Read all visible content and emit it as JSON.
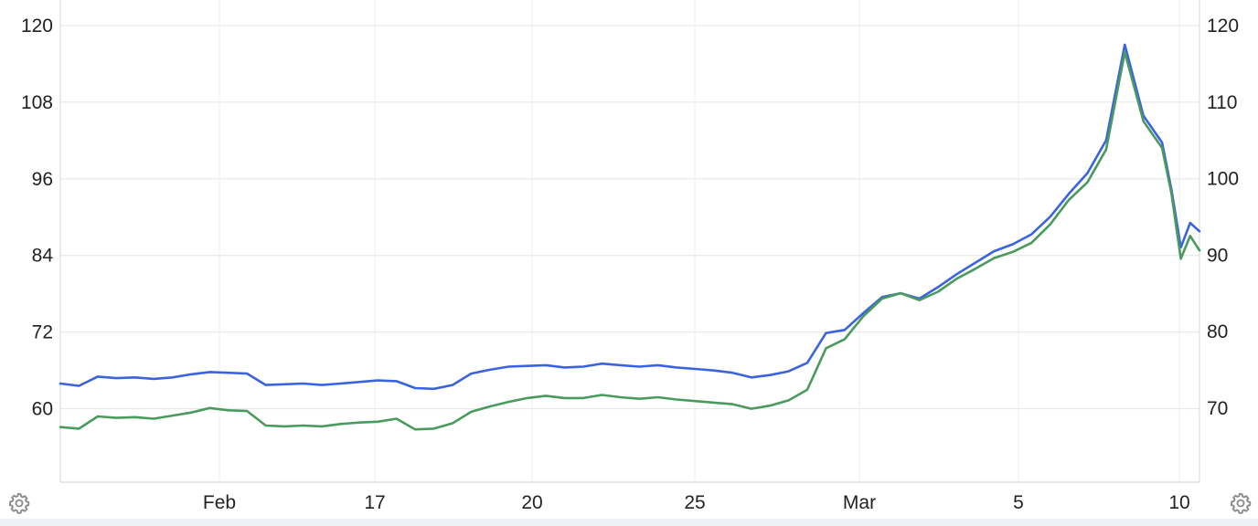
{
  "chart_data": {
    "type": "line",
    "x_ticks": [
      "Feb",
      "17",
      "20",
      "25",
      "Mar",
      "5",
      "10"
    ],
    "y_left": {
      "ticks": [
        60,
        72,
        84,
        96,
        108,
        120
      ],
      "range": [
        48.5,
        120
      ]
    },
    "y_right": {
      "ticks": [
        70,
        80,
        90,
        100,
        110,
        120
      ],
      "range": [
        60.3,
        120
      ]
    },
    "grid": true,
    "series": [
      {
        "color": "#3b63e0",
        "axis": "right",
        "x": [
          0,
          2,
          4,
          6,
          8,
          10,
          12,
          14,
          16,
          18,
          20,
          22,
          24,
          26,
          28,
          30,
          32,
          34,
          36,
          38,
          40,
          42,
          44,
          46,
          48,
          50,
          52,
          54,
          56,
          58,
          60,
          62,
          64,
          66,
          68,
          70,
          72,
          74,
          76,
          78,
          80,
          82,
          84,
          86,
          88,
          90,
          92,
          94,
          96,
          98,
          100
        ],
        "values": [
          73.2,
          72.9,
          74.1,
          73.9,
          74.0,
          73.8,
          74.0,
          74.4,
          74.7,
          74.6,
          74.5,
          73.0,
          73.1,
          73.2,
          73.0,
          73.2,
          73.4,
          73.6,
          73.5,
          72.6,
          72.5,
          73.0,
          74.5,
          75.0,
          75.4,
          75.5,
          75.6,
          75.3,
          75.4,
          75.8,
          75.6,
          75.4,
          75.6,
          75.3,
          75.1,
          74.9,
          74.6,
          74.0,
          74.3,
          74.8,
          75.9,
          79.8,
          80.2,
          82.4,
          84.5,
          85.0,
          84.3,
          85.8,
          87.5,
          89.0,
          90.5
        ]
      },
      {
        "color": "#3b63e0",
        "axis": "right",
        "x": [
          100,
          102,
          104,
          106,
          108,
          110,
          112,
          114,
          116,
          118,
          119,
          120,
          121,
          122
        ],
        "values": [
          90.5,
          91.4,
          92.7,
          95.0,
          98.0,
          100.7,
          105.0,
          117.5,
          108.2,
          104.7,
          98.5,
          91.0,
          94.2,
          93.1
        ]
      },
      {
        "color": "#4a9a5e",
        "axis": "right",
        "x": [
          0,
          2,
          4,
          6,
          8,
          10,
          12,
          14,
          16,
          18,
          20,
          22,
          24,
          26,
          28,
          30,
          32,
          34,
          36,
          38,
          40,
          42,
          44,
          46,
          48,
          50,
          52,
          54,
          56,
          58,
          60,
          62,
          64,
          66,
          68,
          70,
          72,
          74,
          76,
          78,
          80,
          82,
          84,
          86,
          88,
          90,
          92,
          94,
          96,
          98,
          100
        ],
        "values": [
          67.5,
          67.3,
          68.9,
          68.7,
          68.8,
          68.6,
          69.0,
          69.4,
          70.0,
          69.7,
          69.6,
          67.7,
          67.6,
          67.7,
          67.6,
          67.9,
          68.1,
          68.2,
          68.6,
          67.2,
          67.3,
          68.0,
          69.5,
          70.2,
          70.8,
          71.3,
          71.6,
          71.3,
          71.3,
          71.7,
          71.4,
          71.2,
          71.4,
          71.1,
          70.9,
          70.7,
          70.5,
          69.9,
          70.3,
          71.0,
          72.4,
          77.8,
          79.0,
          82.0,
          84.3,
          85.0,
          84.1,
          85.2,
          86.9,
          88.2,
          89.6
        ]
      },
      {
        "color": "#4a9a5e",
        "axis": "right",
        "x": [
          100,
          102,
          104,
          106,
          108,
          110,
          112,
          114,
          116,
          118,
          119,
          120,
          121,
          122
        ],
        "values": [
          89.6,
          90.4,
          91.6,
          94.0,
          97.2,
          99.5,
          103.8,
          116.5,
          107.5,
          104.0,
          98.0,
          89.5,
          92.5,
          90.6
        ]
      }
    ]
  },
  "icons": {
    "left": "gear-icon",
    "right": "gear-icon"
  }
}
